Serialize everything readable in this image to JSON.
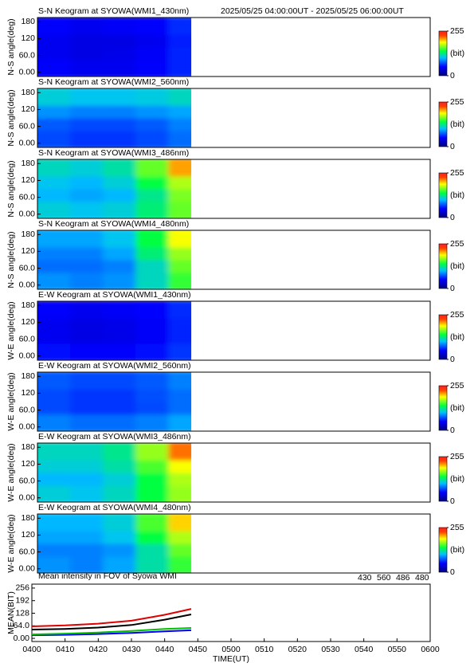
{
  "chart_data": [
    {
      "type": "heatmap",
      "title": "S-N Keogram at SYOWA(WMI1_430nm)",
      "subtitle": "2025/05/25 04:00:00UT - 2025/05/25 06:00:00UT",
      "ylabel": "N-S angle(deg)",
      "x_edges": [
        0,
        10,
        20,
        30,
        40,
        47
      ],
      "y_edges": [
        0,
        45,
        90,
        135,
        180
      ],
      "z": [
        [
          50,
          45,
          45,
          50,
          60
        ],
        [
          45,
          40,
          42,
          48,
          60
        ],
        [
          45,
          40,
          40,
          45,
          58
        ],
        [
          50,
          45,
          48,
          50,
          62
        ]
      ],
      "xlim": [
        0,
        120
      ],
      "ylim": [
        -15,
        195
      ],
      "yticks": [
        {
          "value": 0,
          "label": "0.00"
        },
        {
          "value": 60,
          "label": "60.0"
        },
        120,
        180
      ],
      "clim": [
        0,
        255
      ],
      "cticks": [
        255,
        0
      ],
      "clabel": "(bit)"
    },
    {
      "type": "heatmap",
      "title": "S-N Keogram at SYOWA(WMI2_560nm)",
      "ylabel": "N-S angle(deg)",
      "x_edges": [
        0,
        10,
        20,
        30,
        40,
        47
      ],
      "y_edges": [
        0,
        45,
        90,
        135,
        180
      ],
      "z": [
        [
          70,
          65,
          65,
          70,
          80
        ],
        [
          75,
          70,
          70,
          75,
          85
        ],
        [
          90,
          85,
          85,
          90,
          95
        ],
        [
          110,
          105,
          105,
          108,
          115
        ]
      ],
      "xlim": [
        0,
        120
      ],
      "ylim": [
        -15,
        195
      ],
      "yticks": [
        {
          "value": 0,
          "label": "0.00"
        },
        {
          "value": 60,
          "label": "60.0"
        },
        120,
        180
      ],
      "clim": [
        0,
        255
      ],
      "cticks": [
        255,
        0
      ],
      "clabel": "(bit)"
    },
    {
      "type": "heatmap",
      "title": "S-N Keogram at SYOWA(WMI3_486nm)",
      "ylabel": "N-S angle(deg)",
      "x_edges": [
        0,
        10,
        20,
        30,
        40,
        47
      ],
      "y_edges": [
        0,
        45,
        90,
        135,
        180
      ],
      "z": [
        [
          110,
          105,
          110,
          130,
          160
        ],
        [
          100,
          95,
          100,
          125,
          165
        ],
        [
          105,
          100,
          110,
          140,
          175
        ],
        [
          115,
          110,
          120,
          160,
          210
        ]
      ],
      "xlim": [
        0,
        120
      ],
      "ylim": [
        -15,
        195
      ],
      "yticks": [
        {
          "value": 0,
          "label": "0.00"
        },
        {
          "value": 60,
          "label": "60.0"
        },
        120,
        180
      ],
      "clim": [
        0,
        255
      ],
      "cticks": [
        255,
        0
      ],
      "clabel": "(bit)"
    },
    {
      "type": "heatmap",
      "title": "S-N Keogram at SYOWA(WMI4_480nm)",
      "ylabel": "N-S angle(deg)",
      "x_edges": [
        0,
        10,
        20,
        30,
        40,
        47
      ],
      "y_edges": [
        0,
        45,
        90,
        135,
        180
      ],
      "z": [
        [
          90,
          85,
          90,
          115,
          150
        ],
        [
          80,
          80,
          85,
          115,
          160
        ],
        [
          85,
          85,
          95,
          130,
          170
        ],
        [
          95,
          95,
          105,
          140,
          190
        ]
      ],
      "xlim": [
        0,
        120
      ],
      "ylim": [
        -15,
        195
      ],
      "yticks": [
        {
          "value": 0,
          "label": "0.00"
        },
        {
          "value": 60,
          "label": "60.0"
        },
        120,
        180
      ],
      "clim": [
        0,
        255
      ],
      "cticks": [
        255,
        0
      ],
      "clabel": "(bit)"
    },
    {
      "type": "heatmap",
      "title": "E-W Keogram at SYOWA(WMI1_430nm)",
      "ylabel": "W-E angle(deg)",
      "x_edges": [
        0,
        10,
        20,
        30,
        40,
        47
      ],
      "y_edges": [
        0,
        45,
        90,
        135,
        180
      ],
      "z": [
        [
          55,
          50,
          50,
          55,
          65
        ],
        [
          45,
          40,
          42,
          48,
          60
        ],
        [
          45,
          40,
          42,
          48,
          60
        ],
        [
          50,
          45,
          48,
          52,
          62
        ]
      ],
      "xlim": [
        0,
        120
      ],
      "ylim": [
        -15,
        195
      ],
      "yticks": [
        {
          "value": 0,
          "label": "0.00"
        },
        {
          "value": 60,
          "label": "60.0"
        },
        120,
        180
      ],
      "clim": [
        0,
        255
      ],
      "cticks": [
        255,
        0
      ],
      "clabel": "(bit)"
    },
    {
      "type": "heatmap",
      "title": "E-W Keogram at SYOWA(WMI2_560nm)",
      "ylabel": "W-E angle(deg)",
      "x_edges": [
        0,
        10,
        20,
        30,
        40,
        47
      ],
      "y_edges": [
        0,
        45,
        90,
        135,
        180
      ],
      "z": [
        [
          85,
          80,
          80,
          85,
          95
        ],
        [
          70,
          65,
          65,
          70,
          80
        ],
        [
          70,
          65,
          65,
          72,
          80
        ],
        [
          75,
          70,
          70,
          75,
          85
        ]
      ],
      "xlim": [
        0,
        120
      ],
      "ylim": [
        -15,
        195
      ],
      "yticks": [
        {
          "value": 0,
          "label": "0.00"
        },
        {
          "value": 60,
          "label": "60.0"
        },
        120,
        180
      ],
      "clim": [
        0,
        255
      ],
      "cticks": [
        255,
        0
      ],
      "clabel": "(bit)"
    },
    {
      "type": "heatmap",
      "title": "E-W Keogram at SYOWA(WMI3_486nm)",
      "ylabel": "W-E angle(deg)",
      "x_edges": [
        0,
        10,
        20,
        30,
        40,
        47
      ],
      "y_edges": [
        0,
        45,
        90,
        135,
        180
      ],
      "z": [
        [
          110,
          105,
          115,
          140,
          170
        ],
        [
          100,
          100,
          110,
          140,
          175
        ],
        [
          110,
          110,
          120,
          155,
          190
        ],
        [
          115,
          115,
          125,
          170,
          220
        ]
      ],
      "xlim": [
        0,
        120
      ],
      "ylim": [
        -15,
        195
      ],
      "yticks": [
        {
          "value": 0,
          "label": "0.00"
        },
        {
          "value": 60,
          "label": "60.0"
        },
        120,
        180
      ],
      "clim": [
        0,
        255
      ],
      "cticks": [
        255,
        0
      ],
      "clabel": "(bit)"
    },
    {
      "type": "heatmap",
      "title": "E-W Keogram at SYOWA(WMI4_480nm)",
      "ylabel": "W-E angle(deg)",
      "x_edges": [
        0,
        10,
        20,
        30,
        40,
        47
      ],
      "y_edges": [
        0,
        45,
        90,
        135,
        180
      ],
      "z": [
        [
          90,
          85,
          95,
          120,
          150
        ],
        [
          85,
          85,
          90,
          120,
          160
        ],
        [
          95,
          95,
          105,
          140,
          175
        ],
        [
          100,
          100,
          110,
          155,
          200
        ]
      ],
      "xlim": [
        0,
        120
      ],
      "ylim": [
        -15,
        195
      ],
      "yticks": [
        {
          "value": 0,
          "label": "0.00"
        },
        {
          "value": 60,
          "label": "60.0"
        },
        120,
        180
      ],
      "clim": [
        0,
        255
      ],
      "cticks": [
        255,
        0
      ],
      "clabel": "(bit)"
    },
    {
      "type": "line",
      "title": "Mean intensity in FOV of Syowa WMI",
      "xlabel": "TIME(UT)",
      "ylabel": "MEAN(BIT)",
      "x": [
        0,
        10,
        20,
        30,
        40,
        48
      ],
      "series": [
        {
          "name": "430",
          "color": "#0000ff",
          "values": [
            16,
            18,
            22,
            28,
            36,
            41
          ]
        },
        {
          "name": "560",
          "color": "#00c000",
          "values": [
            20,
            24,
            30,
            38,
            48,
            53
          ]
        },
        {
          "name": "486",
          "color": "#e00000",
          "values": [
            61,
            66,
            75,
            90,
            120,
            150
          ]
        },
        {
          "name": "480",
          "color": "#000000",
          "values": [
            45,
            48,
            55,
            68,
            95,
            122
          ]
        }
      ],
      "xlim": [
        0,
        120
      ],
      "xticks": [
        {
          "value": 0,
          "label": "0400"
        },
        {
          "value": 10,
          "label": "0410"
        },
        {
          "value": 20,
          "label": "0420"
        },
        {
          "value": 30,
          "label": "0430"
        },
        {
          "value": 40,
          "label": "0440"
        },
        {
          "value": 50,
          "label": "0450"
        },
        {
          "value": 60,
          "label": "0500"
        },
        {
          "value": 70,
          "label": "0510"
        },
        {
          "value": 80,
          "label": "0520"
        },
        {
          "value": 90,
          "label": "0530"
        },
        {
          "value": 100,
          "label": "0540"
        },
        {
          "value": 110,
          "label": "0550"
        },
        {
          "value": 120,
          "label": "0600"
        }
      ],
      "ylim": [
        -16,
        276
      ],
      "yticks": [
        {
          "value": 0,
          "label": "0.00"
        },
        {
          "value": 64,
          "label": "64.0"
        },
        128,
        192,
        256
      ],
      "legend": "top-right"
    }
  ]
}
